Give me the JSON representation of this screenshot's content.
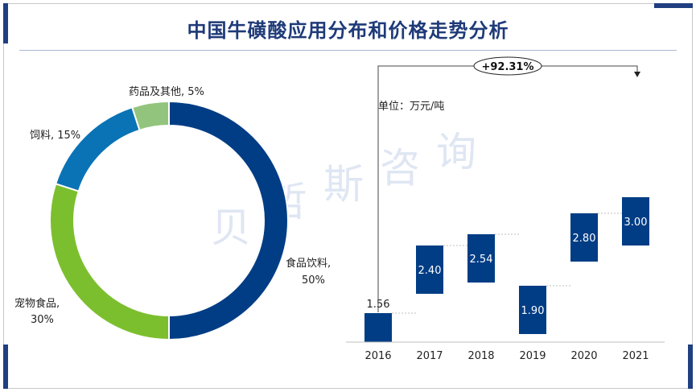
{
  "title": "中国牛磺酸应用分布和价格走势分析",
  "watermark": [
    "贝",
    "哲",
    "斯",
    "咨",
    "询"
  ],
  "colors": {
    "navy": "#003d85",
    "title": "#1e3a78",
    "pie": [
      "#003d85",
      "#7cbf2e",
      "#0a73b5",
      "#93c47d"
    ]
  },
  "chart_data": [
    {
      "type": "pie",
      "style": "donut",
      "slices": [
        {
          "name": "食品饮料",
          "value": 50,
          "label_line1": "食品饮料,",
          "label_line2": "50%"
        },
        {
          "name": "宠物食品",
          "value": 30,
          "label_line1": "宠物食品,",
          "label_line2": "30%"
        },
        {
          "name": "饲料",
          "value": 15,
          "label_line1": "饲料, 15%"
        },
        {
          "name": "药品及其他",
          "value": 5,
          "label_line1": "药品及其他, 5%"
        }
      ]
    },
    {
      "type": "bar",
      "style": "floating",
      "unit_label": "单位：万元/吨",
      "categories": [
        "2016",
        "2017",
        "2018",
        "2019",
        "2020",
        "2021"
      ],
      "values": [
        1.56,
        2.4,
        2.54,
        1.9,
        2.8,
        3.0
      ],
      "value_labels": [
        "1.56",
        "2.40",
        "2.54",
        "1.90",
        "2.80",
        "3.00"
      ],
      "annotation": "+92.31%",
      "ylim": [
        1.2,
        3.4
      ]
    }
  ]
}
